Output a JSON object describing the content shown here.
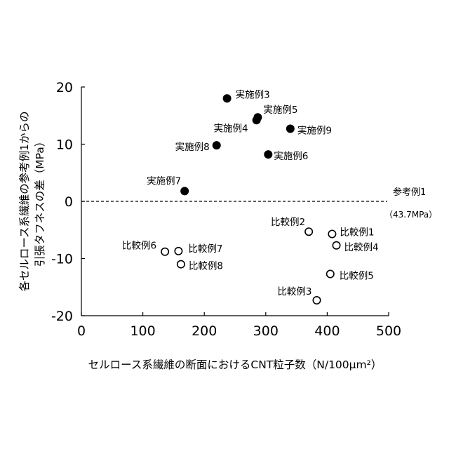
{
  "chart_data": {
    "type": "scatter",
    "xlabel": "セルロース系繊維の断面におけるCNT粒子数（N/100μm²）",
    "ylabel_line1": "各セルロース系繊維の参考例1からの",
    "ylabel_line2": "引張タフネスの差（MPa）",
    "xlim": [
      0,
      500
    ],
    "ylim": [
      -20,
      20
    ],
    "x_ticks": [
      0,
      100,
      200,
      300,
      400,
      500
    ],
    "y_ticks": [
      20,
      10,
      0,
      -10,
      -20
    ],
    "reference_line": {
      "y": 0,
      "label": "参考例1",
      "sublabel": "（43.7MPa）"
    },
    "series": [
      {
        "marker": "filled-circle",
        "color": "#000000",
        "points": [
          {
            "label": "実施例3",
            "x": 237,
            "y": 18
          },
          {
            "label": "実施例5",
            "x": 287,
            "y": 14.7
          },
          {
            "label": "実施例4",
            "x": 285,
            "y": 14.2
          },
          {
            "label": "実施例9",
            "x": 340,
            "y": 12.7
          },
          {
            "label": "実施例8",
            "x": 220,
            "y": 9.8
          },
          {
            "label": "実施例6",
            "x": 304,
            "y": 8.2
          },
          {
            "label": "実施例7",
            "x": 168,
            "y": 1.8
          }
        ]
      },
      {
        "marker": "open-circle",
        "color": "#000000",
        "points": [
          {
            "label": "比較例2",
            "x": 370,
            "y": -5.3
          },
          {
            "label": "比較例1",
            "x": 408,
            "y": -5.7
          },
          {
            "label": "比較例4",
            "x": 415,
            "y": -7.7
          },
          {
            "label": "比較例6",
            "x": 136,
            "y": -8.8
          },
          {
            "label": "比較例7",
            "x": 158,
            "y": -8.7
          },
          {
            "label": "比較例8",
            "x": 162,
            "y": -11
          },
          {
            "label": "比較例5",
            "x": 405,
            "y": -12.7
          },
          {
            "label": "比較例3",
            "x": 383,
            "y": -17.3
          }
        ]
      }
    ]
  }
}
